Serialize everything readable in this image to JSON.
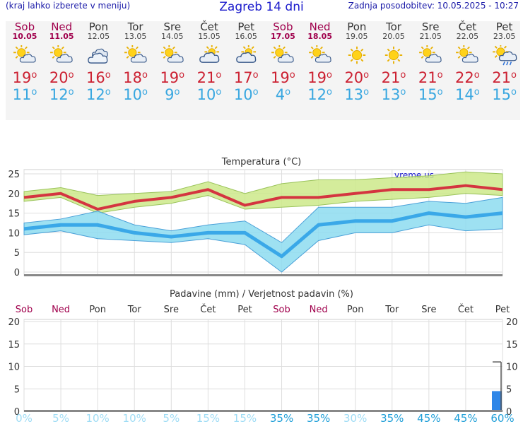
{
  "header": {
    "left_note": "(kraj lahko izberete v meniju)",
    "title": "Zagreb 14 dni",
    "updated": "Zadnja posodobitev: 10.05.2025 - 10:27"
  },
  "days": [
    {
      "name": "Sob",
      "date": "10.05",
      "weekend": true,
      "icon": "sun-cloud-icon",
      "max": "19",
      "min": "11"
    },
    {
      "name": "Ned",
      "date": "11.05",
      "weekend": true,
      "icon": "sun-cloud-icon",
      "max": "20",
      "min": "12"
    },
    {
      "name": "Pon",
      "date": "12.05",
      "weekend": false,
      "icon": "cloudy-icon",
      "max": "16",
      "min": "12"
    },
    {
      "name": "Tor",
      "date": "13.05",
      "weekend": false,
      "icon": "sun-cloud-icon",
      "max": "18",
      "min": "10"
    },
    {
      "name": "Sre",
      "date": "14.05",
      "weekend": false,
      "icon": "sun-cloud-icon",
      "max": "19",
      "min": "9"
    },
    {
      "name": "Čet",
      "date": "15.05",
      "weekend": false,
      "icon": "cloud-sun-icon",
      "max": "21",
      "min": "10"
    },
    {
      "name": "Pet",
      "date": "16.05",
      "weekend": false,
      "icon": "cloud-sun-icon",
      "max": "17",
      "min": "10"
    },
    {
      "name": "Sob",
      "date": "17.05",
      "weekend": true,
      "icon": "sun-cloud-icon",
      "max": "19",
      "min": "4"
    },
    {
      "name": "Ned",
      "date": "18.05",
      "weekend": true,
      "icon": "sun-cloud-icon",
      "max": "19",
      "min": "12"
    },
    {
      "name": "Pon",
      "date": "19.05",
      "weekend": false,
      "icon": "sun-icon",
      "max": "20",
      "min": "13"
    },
    {
      "name": "Tor",
      "date": "20.05",
      "weekend": false,
      "icon": "sun-icon",
      "max": "21",
      "min": "13"
    },
    {
      "name": "Sre",
      "date": "21.05",
      "weekend": false,
      "icon": "sun-cloud-icon",
      "max": "21",
      "min": "15"
    },
    {
      "name": "Čet",
      "date": "22.05",
      "weekend": false,
      "icon": "sun-cloud-icon",
      "max": "22",
      "min": "14"
    },
    {
      "name": "Pet",
      "date": "23.05",
      "weekend": false,
      "icon": "sun-rain-icon",
      "max": "21",
      "min": "15"
    }
  ],
  "colors": {
    "max_line": "#d43540",
    "max_band": "#cde98a",
    "min_line": "#3aa8e8",
    "min_band": "#8ddcf0",
    "overlap": "#7cc79a",
    "weekend": "#a0004c",
    "precip_bar": "#2e86e8",
    "prob_low": "#9edcf5",
    "prob_high": "#1f9fd8"
  },
  "chart_data": [
    {
      "type": "line",
      "title": "Temperatura (°C)",
      "watermark": "vreme.us",
      "ylim": [
        0,
        25
      ],
      "yticks": [
        0,
        5,
        10,
        15,
        20,
        25
      ],
      "categories": [
        "10.05",
        "11.05",
        "12.05",
        "13.05",
        "14.05",
        "15.05",
        "16.05",
        "17.05",
        "18.05",
        "19.05",
        "20.05",
        "21.05",
        "22.05",
        "23.05"
      ],
      "series": [
        {
          "values": [
            19,
            20,
            16,
            18,
            19,
            21,
            17,
            19,
            19,
            20,
            21,
            21,
            22,
            21
          ],
          "band_low": [
            18,
            19,
            15,
            16.5,
            17.5,
            19.5,
            16,
            16.5,
            17,
            18,
            18.5,
            19,
            20,
            19.5
          ],
          "band_high": [
            20.5,
            21.5,
            19.5,
            20,
            20.5,
            23,
            20,
            22.5,
            23.5,
            23.5,
            24,
            24.5,
            25.5,
            25
          ]
        },
        {
          "values": [
            11,
            12,
            12,
            10,
            9,
            10,
            10,
            4,
            12,
            13,
            13,
            15,
            14,
            15
          ],
          "band_low": [
            9.5,
            10.5,
            8.5,
            8,
            7.5,
            8.5,
            7,
            0,
            8,
            10,
            10,
            12,
            10.5,
            11
          ],
          "band_high": [
            12.5,
            13.5,
            15.5,
            12,
            10.5,
            12,
            13,
            7.5,
            16.5,
            16.5,
            16.5,
            18,
            17.5,
            19
          ]
        }
      ]
    },
    {
      "type": "bar",
      "title": "Padavine (mm) / Verjetnost padavin (%)",
      "categories": [
        "Sob",
        "Ned",
        "Pon",
        "Tor",
        "Sre",
        "Čet",
        "Pet",
        "Sob",
        "Ned",
        "Pon",
        "Tor",
        "Sre",
        "Čet",
        "Pet"
      ],
      "ylim": [
        0,
        20
      ],
      "yticks": [
        0,
        5,
        10,
        15,
        20
      ],
      "precip_mm": [
        0,
        0,
        0,
        0,
        0,
        0,
        0,
        0,
        0,
        0,
        0,
        0,
        0,
        4.5
      ],
      "precip_range_high": [
        null,
        null,
        null,
        null,
        null,
        null,
        null,
        null,
        null,
        null,
        null,
        null,
        null,
        11
      ],
      "probability": [
        "0%",
        "5%",
        "10%",
        "10%",
        "5%",
        "15%",
        "15%",
        "35%",
        "35%",
        "30%",
        "35%",
        "45%",
        "45%",
        "60%"
      ]
    }
  ]
}
